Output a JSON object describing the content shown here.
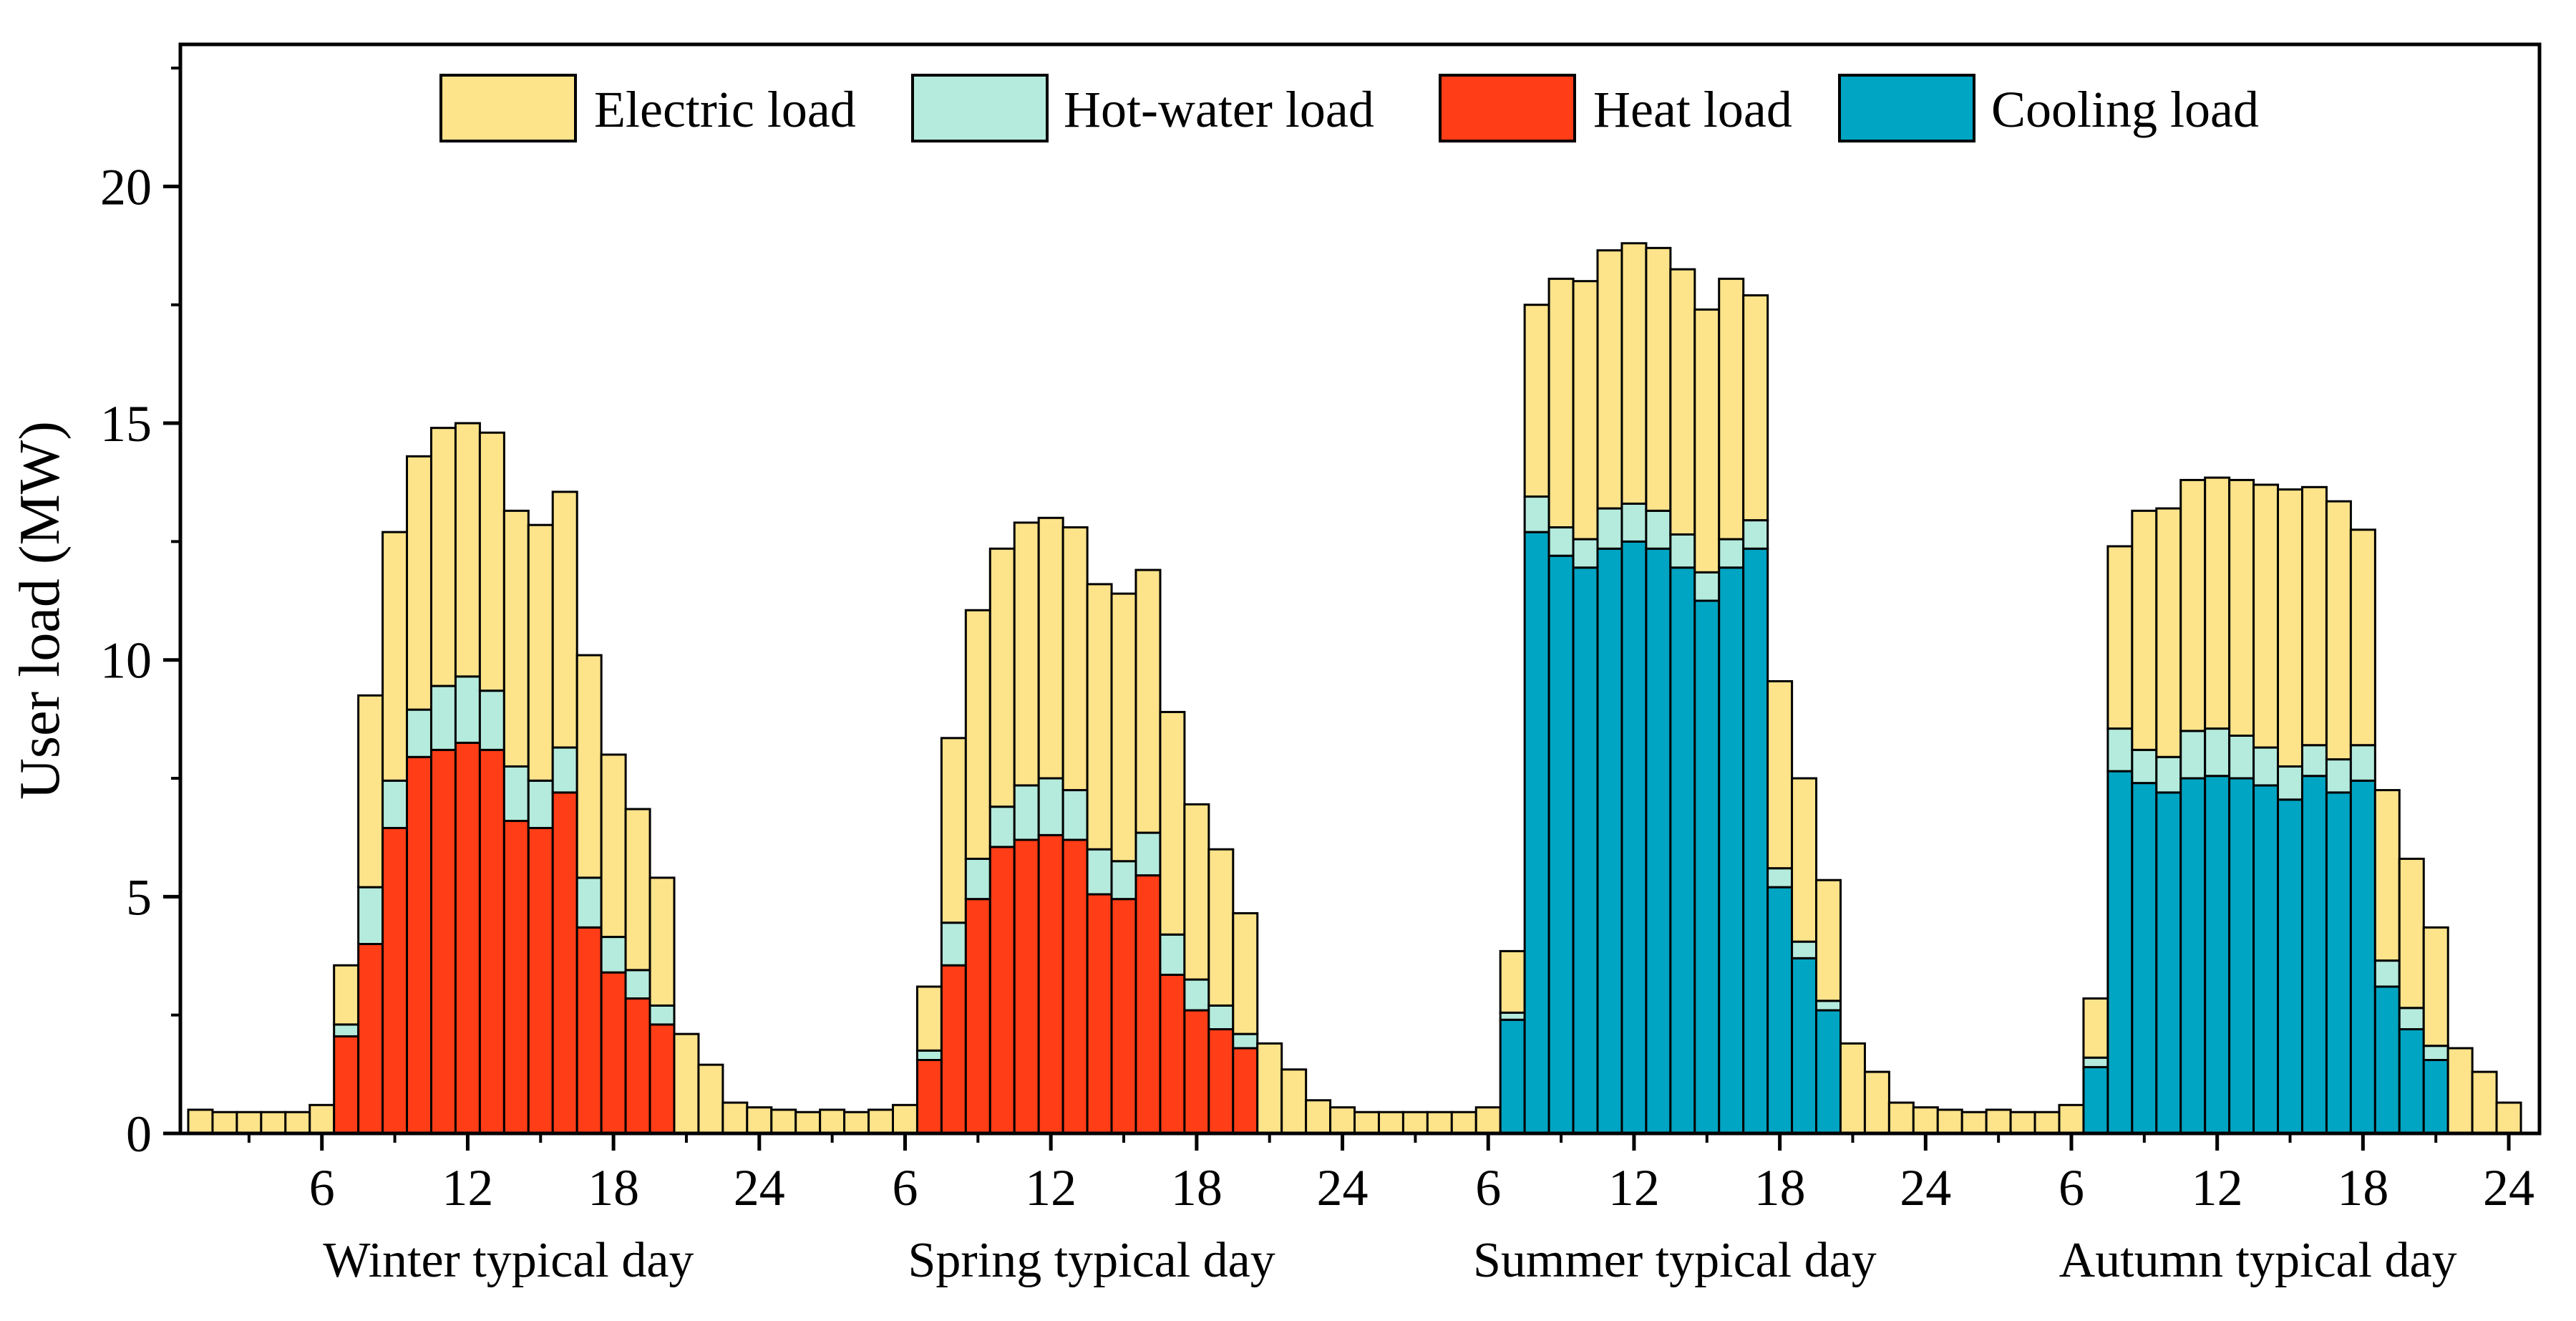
{
  "chart_data": {
    "type": "bar",
    "stacked": true,
    "title": "",
    "xlabel": "",
    "ylabel": "User load (MW)",
    "ylim": [
      0,
      23
    ],
    "yticks": [
      0,
      5,
      10,
      15,
      20
    ],
    "xtick_labels": [
      "6",
      "12",
      "18",
      "24"
    ],
    "grid": false,
    "legend_position": "top",
    "colors": {
      "electric": "#FDE38A",
      "hotwater": "#B4EBDD",
      "heat": "#FF3D17",
      "cooling": "#00A5C3",
      "edge": "#000000"
    },
    "series": [
      {
        "key": "electric",
        "name": "Electric load"
      },
      {
        "key": "hotwater",
        "name": "Hot-water load"
      },
      {
        "key": "heat",
        "name": "Heat load"
      },
      {
        "key": "cooling",
        "name": "Cooling load"
      }
    ],
    "groups": [
      {
        "name": "Winter typical day",
        "base": "heat",
        "base_values": [
          0,
          0,
          0,
          0,
          0,
          0,
          2.05,
          4.0,
          6.45,
          7.95,
          8.1,
          8.25,
          8.1,
          6.6,
          6.45,
          7.2,
          4.35,
          3.4,
          2.85,
          2.3,
          0,
          0,
          0,
          0
        ],
        "hotwater_values": [
          0,
          0,
          0,
          0,
          0,
          0,
          0.25,
          1.2,
          1.0,
          1.0,
          1.35,
          1.4,
          1.25,
          1.15,
          1.0,
          0.95,
          1.05,
          0.75,
          0.6,
          0.4,
          0,
          0,
          0,
          0
        ],
        "totals": [
          0.5,
          0.45,
          0.45,
          0.45,
          0.45,
          0.6,
          3.55,
          9.25,
          12.7,
          14.3,
          14.9,
          15.0,
          14.8,
          13.15,
          12.85,
          13.55,
          10.1,
          8.0,
          6.85,
          5.4,
          2.1,
          1.45,
          0.65,
          0.55
        ]
      },
      {
        "name": "Spring typical day",
        "base": "heat",
        "base_values": [
          0,
          0,
          0,
          0,
          0,
          0,
          1.55,
          3.55,
          4.95,
          6.05,
          6.2,
          6.3,
          6.2,
          5.05,
          4.95,
          5.45,
          3.35,
          2.6,
          2.2,
          1.8,
          0,
          0,
          0,
          0
        ],
        "hotwater_values": [
          0,
          0,
          0,
          0,
          0,
          0,
          0.2,
          0.9,
          0.85,
          0.85,
          1.15,
          1.2,
          1.05,
          0.95,
          0.8,
          0.9,
          0.85,
          0.65,
          0.5,
          0.3,
          0,
          0,
          0,
          0
        ],
        "totals": [
          0.5,
          0.45,
          0.5,
          0.45,
          0.5,
          0.6,
          3.1,
          8.35,
          11.05,
          12.35,
          12.9,
          13.0,
          12.8,
          11.6,
          11.4,
          11.9,
          8.9,
          6.95,
          6.0,
          4.65,
          1.9,
          1.35,
          0.7,
          0.55
        ]
      },
      {
        "name": "Summer typical day",
        "base": "cooling",
        "base_values": [
          0,
          0,
          0,
          0,
          0,
          0,
          2.4,
          12.7,
          12.2,
          11.95,
          12.35,
          12.5,
          12.35,
          11.95,
          11.25,
          11.95,
          12.35,
          5.2,
          3.7,
          2.6,
          0,
          0,
          0,
          0
        ],
        "hotwater_values": [
          0,
          0,
          0,
          0,
          0,
          0,
          0.15,
          0.75,
          0.6,
          0.6,
          0.85,
          0.8,
          0.8,
          0.7,
          0.6,
          0.6,
          0.6,
          0.4,
          0.35,
          0.2,
          0,
          0,
          0,
          0
        ],
        "totals": [
          0.45,
          0.45,
          0.45,
          0.45,
          0.45,
          0.55,
          3.85,
          17.5,
          18.05,
          18.0,
          18.65,
          18.8,
          18.7,
          18.25,
          17.4,
          18.05,
          17.7,
          9.55,
          7.5,
          5.35,
          1.9,
          1.3,
          0.65,
          0.55
        ]
      },
      {
        "name": "Autumn typical day",
        "base": "cooling",
        "base_values": [
          0,
          0,
          0,
          0,
          0,
          0,
          1.4,
          7.65,
          7.4,
          7.2,
          7.5,
          7.55,
          7.5,
          7.35,
          7.05,
          7.55,
          7.2,
          7.45,
          3.1,
          2.2,
          1.55,
          0,
          0,
          0
        ],
        "hotwater_values": [
          0,
          0,
          0,
          0,
          0,
          0,
          0.2,
          0.9,
          0.7,
          0.75,
          1.0,
          1.0,
          0.9,
          0.8,
          0.7,
          0.65,
          0.7,
          0.75,
          0.55,
          0.45,
          0.3,
          0,
          0,
          0
        ],
        "totals": [
          0.5,
          0.45,
          0.5,
          0.45,
          0.45,
          0.6,
          2.85,
          12.4,
          13.15,
          13.2,
          13.8,
          13.85,
          13.8,
          13.7,
          13.6,
          13.65,
          13.35,
          12.75,
          7.25,
          5.8,
          4.35,
          1.8,
          1.3,
          0.65
        ]
      }
    ]
  }
}
